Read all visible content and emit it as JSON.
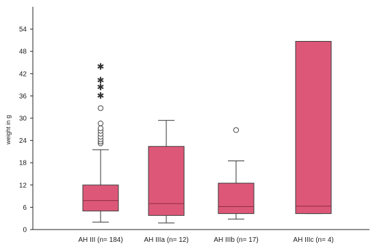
{
  "chart_data": {
    "type": "boxplot",
    "title": "",
    "xlabel": "",
    "ylabel": "weight in g",
    "ylim": [
      0,
      60
    ],
    "yticks": [
      0,
      6,
      12,
      18,
      24,
      30,
      36,
      42,
      48,
      54
    ],
    "grid": false,
    "legend": "none",
    "box_color": "#dd5878",
    "box_edge_color": "#3a3a3a",
    "categories": [
      "AH III (n= 184)",
      "AH IIIa (n= 12)",
      "AH IIIb (n= 17)",
      "AH IIIc (n= 4)"
    ],
    "boxes": [
      {
        "category": "AH III (n= 184)",
        "whisker_low": 2.0,
        "q1": 5.0,
        "median": 7.8,
        "q3": 12.0,
        "whisker_high": 21.5,
        "outliers": [
          23.2,
          23.7,
          24.3,
          25.0,
          25.8,
          26.6,
          27.3,
          28.6,
          32.7
        ],
        "extremes": [
          36.2,
          38.5,
          40.3,
          44.0
        ]
      },
      {
        "category": "AH IIIa (n= 12)",
        "whisker_low": 1.8,
        "q1": 3.8,
        "median": 7.0,
        "q3": 22.4,
        "whisker_high": 29.4,
        "outliers": [],
        "extremes": []
      },
      {
        "category": "AH IIIb (n= 17)",
        "whisker_low": 2.8,
        "q1": 4.3,
        "median": 6.2,
        "q3": 12.5,
        "whisker_high": 18.5,
        "outliers": [
          26.8
        ],
        "extremes": []
      },
      {
        "category": "AH IIIc (n= 4)",
        "whisker_low": 4.3,
        "q1": 4.3,
        "median": 6.3,
        "q3": 50.7,
        "whisker_high": 50.7,
        "outliers": [],
        "extremes": []
      }
    ]
  }
}
